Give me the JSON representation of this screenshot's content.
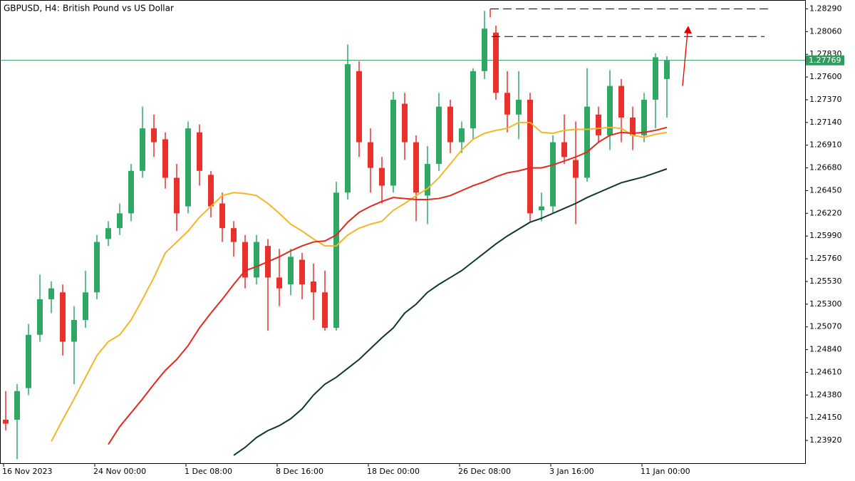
{
  "chart_data": {
    "type": "candlestick",
    "title": "GBPUSD, H4:",
    "subtitle": "British Pound vs US Dollar",
    "categories": [
      "16 Nov 2023",
      null,
      null,
      null,
      null,
      null,
      null,
      null,
      "24 Nov 00:00",
      null,
      null,
      null,
      null,
      null,
      null,
      null,
      "1 Dec 08:00",
      null,
      null,
      null,
      null,
      null,
      null,
      null,
      "8 Dec 16:00",
      null,
      null,
      null,
      null,
      null,
      null,
      null,
      "18 Dec 00:00",
      null,
      null,
      null,
      null,
      null,
      null,
      null,
      "26 Dec 08:00",
      null,
      null,
      null,
      null,
      null,
      null,
      null,
      "3 Jan 16:00",
      null,
      null,
      null,
      null,
      null,
      null,
      null,
      "11 Jan 00:00",
      null,
      null
    ],
    "open": [
      1.2413,
      1.2413,
      1.2445,
      1.2499,
      1.2535,
      1.2542,
      1.2492,
      1.2514,
      1.2542,
      1.2596,
      1.2607,
      1.2622,
      1.2665,
      1.2708,
      1.2697,
      1.2658,
      1.2629,
      1.2704,
      1.2661,
      1.2632,
      1.2607,
      1.2593,
      1.2557,
      1.2589,
      1.2557,
      1.255,
      1.2575,
      1.2553,
      1.2542,
      1.2506,
      1.2643,
      1.2766,
      1.2694,
      1.2668,
      1.265,
      1.2733,
      1.2694,
      1.264,
      1.2672,
      1.273,
      1.2694,
      1.2708,
      1.2766,
      1.2805,
      1.2744,
      1.2722,
      1.2737,
      1.2625,
      1.2629,
      1.2694,
      1.2676,
      1.2658,
      1.2722,
      1.2701,
      1.2751,
      1.2719,
      1.2701,
      1.2737,
      1.2758
    ],
    "high": [
      1.2442,
      1.2449,
      1.251,
      1.256,
      1.2553,
      1.255,
      1.2528,
      1.2564,
      1.26,
      1.2614,
      1.2632,
      1.2672,
      1.273,
      1.2722,
      1.2704,
      1.2672,
      1.2715,
      1.2712,
      1.2665,
      1.2643,
      1.2614,
      1.26,
      1.26,
      1.2596,
      1.2586,
      1.2586,
      1.2582,
      1.2571,
      1.2564,
      1.2654,
      1.2793,
      1.2776,
      1.2708,
      1.2679,
      1.2745,
      1.2744,
      1.2701,
      1.269,
      1.2744,
      1.2737,
      1.2715,
      1.2769,
      1.2827,
      1.2812,
      1.2766,
      1.2766,
      1.2744,
      1.2643,
      1.2701,
      1.2722,
      1.2715,
      1.2769,
      1.273,
      1.2767,
      1.2758,
      1.273,
      1.2744,
      1.2784,
      1.2781
    ],
    "low": [
      1.2402,
      1.2373,
      1.2438,
      1.2492,
      1.2521,
      1.2478,
      1.2449,
      1.2506,
      1.2535,
      1.2589,
      1.26,
      1.2614,
      1.2658,
      1.2679,
      1.2647,
      1.2604,
      1.2622,
      1.265,
      1.2618,
      1.2593,
      1.2578,
      1.2546,
      1.255,
      1.2503,
      1.2528,
      1.2539,
      1.2535,
      1.2514,
      1.2503,
      1.2503,
      1.2636,
      1.2679,
      1.2643,
      1.2632,
      1.2643,
      1.2676,
      1.2614,
      1.2611,
      1.2665,
      1.2683,
      1.2683,
      1.2697,
      1.2758,
      1.2737,
      1.2704,
      1.2697,
      1.2614,
      1.2614,
      1.2622,
      1.2672,
      1.2611,
      1.2654,
      1.2694,
      1.2686,
      1.2694,
      1.2686,
      1.2694,
      1.2708,
      1.2719
    ],
    "close": [
      1.2409,
      1.2442,
      1.2499,
      1.2535,
      1.2546,
      1.2492,
      1.2514,
      1.2542,
      1.2593,
      1.2607,
      1.2622,
      1.2665,
      1.2708,
      1.2694,
      1.2658,
      1.2622,
      1.2708,
      1.2665,
      1.2629,
      1.2607,
      1.2593,
      1.2557,
      1.2593,
      1.2557,
      1.2546,
      1.2578,
      1.255,
      1.2542,
      1.2506,
      1.2643,
      1.2773,
      1.2694,
      1.2668,
      1.265,
      1.2737,
      1.2694,
      1.2643,
      1.2672,
      1.273,
      1.2694,
      1.2708,
      1.2766,
      1.2809,
      1.2744,
      1.2722,
      1.2737,
      1.2622,
      1.2629,
      1.2694,
      1.2679,
      1.2658,
      1.273,
      1.2701,
      1.2751,
      1.2719,
      1.2701,
      1.2737,
      1.278,
      1.27769
    ],
    "up_color": "#2fa866",
    "down_color": "#e8302c",
    "series": [
      {
        "color": "#f4b526",
        "values": [
          null,
          null,
          null,
          null,
          1.2391,
          1.2413,
          1.2434,
          1.2456,
          1.2478,
          1.2492,
          1.2499,
          1.2514,
          1.2535,
          1.2557,
          1.2582,
          1.2593,
          1.2604,
          1.2618,
          1.2629,
          1.264,
          1.2643,
          1.2642,
          1.264,
          1.2632,
          1.2622,
          1.2611,
          1.2604,
          1.2596,
          1.2589,
          1.2589,
          1.26,
          1.2607,
          1.2611,
          1.2614,
          1.2625,
          1.2632,
          1.264,
          1.2647,
          1.2658,
          1.2672,
          1.2686,
          1.2697,
          1.2703,
          1.2706,
          1.2708,
          1.2714,
          1.2714,
          1.2704,
          1.2703,
          1.2706,
          1.2707,
          1.2707,
          1.2708,
          1.2709,
          1.2708,
          1.2701,
          1.2699,
          1.2702,
          1.2704
        ]
      },
      {
        "color": "#e2291d",
        "values": [
          null,
          null,
          null,
          null,
          null,
          null,
          null,
          null,
          null,
          1.2388,
          1.2406,
          1.242,
          1.2434,
          1.2449,
          1.2463,
          1.2474,
          1.2488,
          1.2506,
          1.2521,
          1.2535,
          1.255,
          1.2564,
          1.2568,
          1.2573,
          1.2578,
          1.2584,
          1.2589,
          1.2593,
          1.2594,
          1.26,
          1.2613,
          1.2623,
          1.2629,
          1.2634,
          1.2638,
          1.2637,
          1.2636,
          1.2636,
          1.2637,
          1.264,
          1.2645,
          1.265,
          1.2654,
          1.2659,
          1.2663,
          1.2665,
          1.2668,
          1.2668,
          1.2671,
          1.2675,
          1.2679,
          1.2684,
          1.2694,
          1.2701,
          1.2704,
          1.2703,
          1.2704,
          1.2706,
          1.2709
        ]
      },
      {
        "color": "#0d3a2c",
        "values": [
          null,
          null,
          null,
          null,
          null,
          null,
          null,
          null,
          null,
          null,
          null,
          null,
          null,
          null,
          null,
          null,
          null,
          null,
          null,
          null,
          1.2377,
          1.2385,
          1.2395,
          1.2402,
          1.2407,
          1.2414,
          1.2424,
          1.2438,
          1.2449,
          1.2456,
          1.2465,
          1.2474,
          1.2485,
          1.2496,
          1.2506,
          1.2521,
          1.253,
          1.2542,
          1.255,
          1.2557,
          1.2564,
          1.2573,
          1.2582,
          1.2591,
          1.2599,
          1.2606,
          1.2613,
          1.2617,
          1.2622,
          1.2627,
          1.2632,
          1.2638,
          1.2643,
          1.2648,
          1.2653,
          1.2656,
          1.2659,
          1.2663,
          1.2667
        ]
      }
    ],
    "last_price": 1.27769,
    "last_price_color": "#2e9e5e",
    "levels": [
      1.2829,
      1.2801
    ],
    "arrow": {
      "from": 1.2751,
      "to": 1.2809,
      "color": "#e00000"
    },
    "ylim": [
      1.2369,
      1.2838
    ],
    "yticks": [
      {
        "value": 1.2392,
        "label": "1.23920"
      },
      {
        "value": 1.2415,
        "label": "1.24150"
      },
      {
        "value": 1.2438,
        "label": "1.24380"
      },
      {
        "value": 1.2461,
        "label": "1.24610"
      },
      {
        "value": 1.2484,
        "label": "1.24840"
      },
      {
        "value": 1.2507,
        "label": "1.25070"
      },
      {
        "value": 1.253,
        "label": "1.25300"
      },
      {
        "value": 1.2553,
        "label": "1.25530"
      },
      {
        "value": 1.2576,
        "label": "1.25760"
      },
      {
        "value": 1.2599,
        "label": "1.25990"
      },
      {
        "value": 1.2622,
        "label": "1.26220"
      },
      {
        "value": 1.2645,
        "label": "1.26450"
      },
      {
        "value": 1.2668,
        "label": "1.26680"
      },
      {
        "value": 1.2691,
        "label": "1.26910"
      },
      {
        "value": 1.2714,
        "label": "1.27140"
      },
      {
        "value": 1.2737,
        "label": "1.27370"
      },
      {
        "value": 1.276,
        "label": "1.27600"
      },
      {
        "value": 1.2783,
        "label": "1.27830"
      },
      {
        "value": 1.2806,
        "label": "1.28060"
      },
      {
        "value": 1.2829,
        "label": "1.28290"
      }
    ],
    "grid": false
  }
}
